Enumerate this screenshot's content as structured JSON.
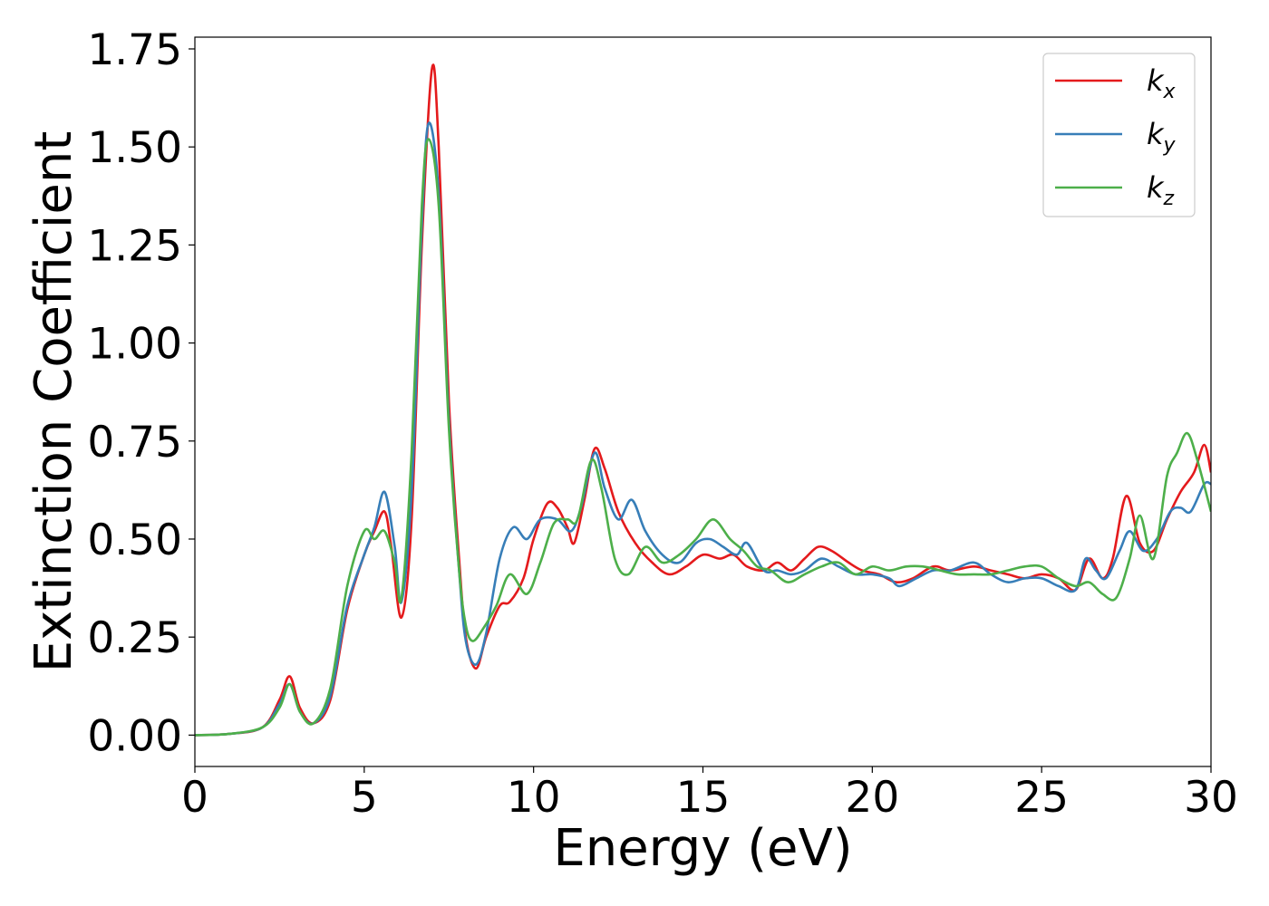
{
  "chart_data": {
    "type": "line",
    "title": "",
    "xlabel": "Energy (eV)",
    "ylabel": "Extinction Coefficient",
    "xlim": [
      0,
      30
    ],
    "ylim": [
      -0.08,
      1.78
    ],
    "xticks": [
      0,
      5,
      10,
      15,
      20,
      25,
      30
    ],
    "xtick_labels": [
      "0",
      "5",
      "10",
      "15",
      "20",
      "25",
      "30"
    ],
    "yticks": [
      0.0,
      0.25,
      0.5,
      0.75,
      1.0,
      1.25,
      1.5,
      1.75
    ],
    "ytick_labels": [
      "0.00",
      "0.25",
      "0.50",
      "0.75",
      "1.00",
      "1.25",
      "1.50",
      "1.75"
    ],
    "grid": false,
    "legend": "top-right",
    "series": [
      {
        "name": "k_x",
        "label_main": "k",
        "label_sub": "x",
        "color": "#e41a1c",
        "points": [
          [
            0,
            0
          ],
          [
            1,
            0.003
          ],
          [
            2,
            0.02
          ],
          [
            2.5,
            0.09
          ],
          [
            2.8,
            0.15
          ],
          [
            3.1,
            0.07
          ],
          [
            3.5,
            0.03
          ],
          [
            4.0,
            0.09
          ],
          [
            4.5,
            0.32
          ],
          [
            5.0,
            0.46
          ],
          [
            5.3,
            0.52
          ],
          [
            5.6,
            0.57
          ],
          [
            5.8,
            0.48
          ],
          [
            6.1,
            0.3
          ],
          [
            6.4,
            0.55
          ],
          [
            6.7,
            1.25
          ],
          [
            7.0,
            1.7
          ],
          [
            7.2,
            1.5
          ],
          [
            7.5,
            0.85
          ],
          [
            7.8,
            0.45
          ],
          [
            8.0,
            0.25
          ],
          [
            8.3,
            0.17
          ],
          [
            8.6,
            0.25
          ],
          [
            9.0,
            0.33
          ],
          [
            9.3,
            0.34
          ],
          [
            9.7,
            0.4
          ],
          [
            10.0,
            0.5
          ],
          [
            10.4,
            0.59
          ],
          [
            10.7,
            0.58
          ],
          [
            11.0,
            0.53
          ],
          [
            11.2,
            0.49
          ],
          [
            11.5,
            0.6
          ],
          [
            11.8,
            0.73
          ],
          [
            12.1,
            0.68
          ],
          [
            12.5,
            0.57
          ],
          [
            13.0,
            0.49
          ],
          [
            13.5,
            0.44
          ],
          [
            14.0,
            0.41
          ],
          [
            14.5,
            0.43
          ],
          [
            15.0,
            0.46
          ],
          [
            15.5,
            0.45
          ],
          [
            15.9,
            0.46
          ],
          [
            16.3,
            0.43
          ],
          [
            16.8,
            0.42
          ],
          [
            17.2,
            0.44
          ],
          [
            17.6,
            0.42
          ],
          [
            18.0,
            0.45
          ],
          [
            18.4,
            0.48
          ],
          [
            18.8,
            0.47
          ],
          [
            19.3,
            0.44
          ],
          [
            19.7,
            0.42
          ],
          [
            20.2,
            0.41
          ],
          [
            20.7,
            0.39
          ],
          [
            21.2,
            0.4
          ],
          [
            21.8,
            0.43
          ],
          [
            22.3,
            0.42
          ],
          [
            23.0,
            0.43
          ],
          [
            23.5,
            0.42
          ],
          [
            24.0,
            0.41
          ],
          [
            24.5,
            0.4
          ],
          [
            25.0,
            0.41
          ],
          [
            25.5,
            0.4
          ],
          [
            26.0,
            0.37
          ],
          [
            26.4,
            0.45
          ],
          [
            26.8,
            0.4
          ],
          [
            27.1,
            0.45
          ],
          [
            27.5,
            0.61
          ],
          [
            27.9,
            0.49
          ],
          [
            28.3,
            0.47
          ],
          [
            28.7,
            0.55
          ],
          [
            29.1,
            0.62
          ],
          [
            29.5,
            0.67
          ],
          [
            29.8,
            0.74
          ],
          [
            30.0,
            0.67
          ]
        ]
      },
      {
        "name": "k_y",
        "label_main": "k",
        "label_sub": "y",
        "color": "#377eb8",
        "points": [
          [
            0,
            0
          ],
          [
            1,
            0.003
          ],
          [
            2,
            0.02
          ],
          [
            2.5,
            0.08
          ],
          [
            2.8,
            0.13
          ],
          [
            3.1,
            0.06
          ],
          [
            3.5,
            0.03
          ],
          [
            4.0,
            0.1
          ],
          [
            4.5,
            0.33
          ],
          [
            5.0,
            0.46
          ],
          [
            5.3,
            0.53
          ],
          [
            5.6,
            0.62
          ],
          [
            5.9,
            0.48
          ],
          [
            6.1,
            0.34
          ],
          [
            6.4,
            0.62
          ],
          [
            6.7,
            1.3
          ],
          [
            6.9,
            1.56
          ],
          [
            7.2,
            1.38
          ],
          [
            7.5,
            0.8
          ],
          [
            7.8,
            0.42
          ],
          [
            8.0,
            0.24
          ],
          [
            8.3,
            0.18
          ],
          [
            8.6,
            0.26
          ],
          [
            9.0,
            0.45
          ],
          [
            9.4,
            0.53
          ],
          [
            9.8,
            0.5
          ],
          [
            10.2,
            0.55
          ],
          [
            10.7,
            0.55
          ],
          [
            11.1,
            0.52
          ],
          [
            11.4,
            0.58
          ],
          [
            11.8,
            0.72
          ],
          [
            12.1,
            0.63
          ],
          [
            12.5,
            0.55
          ],
          [
            12.9,
            0.6
          ],
          [
            13.3,
            0.52
          ],
          [
            13.8,
            0.46
          ],
          [
            14.3,
            0.44
          ],
          [
            14.8,
            0.49
          ],
          [
            15.2,
            0.5
          ],
          [
            15.6,
            0.48
          ],
          [
            16.0,
            0.46
          ],
          [
            16.3,
            0.49
          ],
          [
            16.8,
            0.42
          ],
          [
            17.2,
            0.42
          ],
          [
            17.6,
            0.41
          ],
          [
            18.0,
            0.42
          ],
          [
            18.5,
            0.45
          ],
          [
            19.0,
            0.43
          ],
          [
            19.5,
            0.41
          ],
          [
            20.0,
            0.41
          ],
          [
            20.5,
            0.4
          ],
          [
            20.8,
            0.38
          ],
          [
            21.3,
            0.4
          ],
          [
            21.8,
            0.42
          ],
          [
            22.3,
            0.42
          ],
          [
            23.0,
            0.44
          ],
          [
            23.5,
            0.41
          ],
          [
            24.0,
            0.39
          ],
          [
            24.5,
            0.4
          ],
          [
            25.0,
            0.4
          ],
          [
            25.5,
            0.38
          ],
          [
            26.0,
            0.37
          ],
          [
            26.3,
            0.45
          ],
          [
            26.6,
            0.42
          ],
          [
            26.9,
            0.4
          ],
          [
            27.3,
            0.47
          ],
          [
            27.6,
            0.52
          ],
          [
            28.0,
            0.47
          ],
          [
            28.4,
            0.5
          ],
          [
            28.8,
            0.57
          ],
          [
            29.1,
            0.58
          ],
          [
            29.4,
            0.57
          ],
          [
            29.8,
            0.64
          ],
          [
            30.0,
            0.64
          ]
        ]
      },
      {
        "name": "k_z",
        "label_main": "k",
        "label_sub": "z",
        "color": "#4daf4a",
        "points": [
          [
            0,
            0
          ],
          [
            1,
            0.003
          ],
          [
            2,
            0.02
          ],
          [
            2.5,
            0.07
          ],
          [
            2.8,
            0.13
          ],
          [
            3.1,
            0.06
          ],
          [
            3.5,
            0.03
          ],
          [
            4.0,
            0.12
          ],
          [
            4.5,
            0.38
          ],
          [
            5.0,
            0.52
          ],
          [
            5.3,
            0.5
          ],
          [
            5.6,
            0.52
          ],
          [
            5.9,
            0.44
          ],
          [
            6.1,
            0.35
          ],
          [
            6.4,
            0.72
          ],
          [
            6.7,
            1.35
          ],
          [
            6.9,
            1.52
          ],
          [
            7.2,
            1.35
          ],
          [
            7.5,
            0.78
          ],
          [
            7.8,
            0.42
          ],
          [
            8.0,
            0.28
          ],
          [
            8.2,
            0.24
          ],
          [
            8.5,
            0.27
          ],
          [
            8.9,
            0.33
          ],
          [
            9.3,
            0.41
          ],
          [
            9.8,
            0.36
          ],
          [
            10.2,
            0.44
          ],
          [
            10.6,
            0.54
          ],
          [
            11.0,
            0.55
          ],
          [
            11.3,
            0.55
          ],
          [
            11.7,
            0.7
          ],
          [
            12.0,
            0.63
          ],
          [
            12.4,
            0.45
          ],
          [
            12.8,
            0.41
          ],
          [
            13.3,
            0.48
          ],
          [
            13.8,
            0.44
          ],
          [
            14.3,
            0.46
          ],
          [
            14.8,
            0.5
          ],
          [
            15.3,
            0.55
          ],
          [
            15.8,
            0.5
          ],
          [
            16.2,
            0.47
          ],
          [
            16.6,
            0.43
          ],
          [
            17.0,
            0.42
          ],
          [
            17.5,
            0.39
          ],
          [
            18.0,
            0.41
          ],
          [
            18.5,
            0.43
          ],
          [
            19.0,
            0.44
          ],
          [
            19.5,
            0.41
          ],
          [
            20.0,
            0.43
          ],
          [
            20.5,
            0.42
          ],
          [
            21.0,
            0.43
          ],
          [
            21.5,
            0.43
          ],
          [
            22.0,
            0.42
          ],
          [
            22.5,
            0.41
          ],
          [
            23.0,
            0.41
          ],
          [
            23.5,
            0.41
          ],
          [
            24.0,
            0.42
          ],
          [
            24.5,
            0.43
          ],
          [
            25.0,
            0.43
          ],
          [
            25.5,
            0.4
          ],
          [
            26.0,
            0.38
          ],
          [
            26.4,
            0.39
          ],
          [
            26.8,
            0.36
          ],
          [
            27.2,
            0.35
          ],
          [
            27.6,
            0.45
          ],
          [
            27.9,
            0.56
          ],
          [
            28.3,
            0.45
          ],
          [
            28.7,
            0.66
          ],
          [
            29.0,
            0.72
          ],
          [
            29.3,
            0.77
          ],
          [
            29.6,
            0.7
          ],
          [
            30.0,
            0.57
          ]
        ]
      }
    ]
  }
}
